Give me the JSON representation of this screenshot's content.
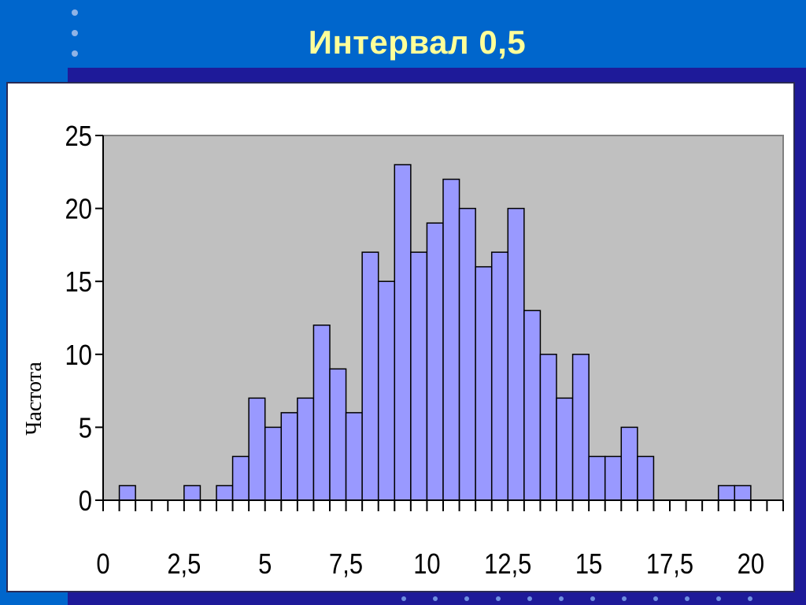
{
  "slide": {
    "title": "Интервал 0,5"
  },
  "colors": {
    "background": "#0066cc",
    "band": "#1e1a99",
    "title": "#ffff99",
    "plot_area": "#c0c0c0",
    "bar_fill": "#9999ff",
    "bar_stroke": "#000000"
  },
  "chart_data": {
    "type": "bar",
    "title": "",
    "xlabel": "",
    "ylabel": "Частота",
    "bin_width": 0.5,
    "ylim": [
      0,
      25
    ],
    "yticks": [
      0,
      5,
      10,
      15,
      20,
      25
    ],
    "xlim": [
      0,
      21
    ],
    "xticks": [
      0,
      2.5,
      5,
      7.5,
      10,
      12.5,
      15,
      17.5,
      20
    ],
    "xtick_labels": [
      "0",
      "2,5",
      "5",
      "7,5",
      "10",
      "12,5",
      "15",
      "17,5",
      "20"
    ],
    "grid": false,
    "values": [
      0,
      1,
      0,
      0,
      0,
      1,
      0,
      1,
      3,
      7,
      5,
      6,
      7,
      12,
      9,
      6,
      17,
      15,
      23,
      17,
      19,
      22,
      20,
      16,
      17,
      20,
      13,
      10,
      7,
      10,
      3,
      3,
      5,
      3,
      0,
      0,
      0,
      0,
      1,
      1,
      0,
      0
    ]
  }
}
